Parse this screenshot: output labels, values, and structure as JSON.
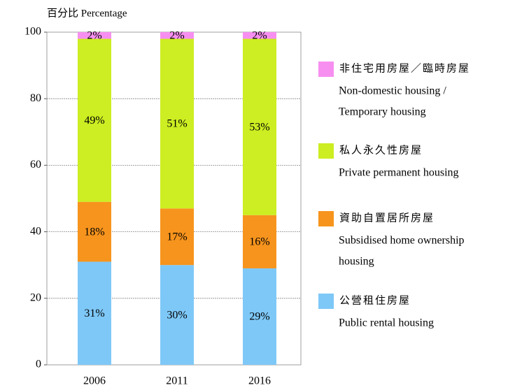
{
  "chart_data": {
    "type": "stacked_bar",
    "y_axis_label": "百分比 Percentage",
    "categories": [
      "2006",
      "2011",
      "2016"
    ],
    "series": [
      {
        "name": "公營租住房屋",
        "name_en": [
          "Public rental housing"
        ],
        "color": "#7ec8f7",
        "values": [
          31,
          30,
          29
        ],
        "value_labels": [
          "31%",
          "30%",
          "29%"
        ]
      },
      {
        "name": "資助自置居所房屋",
        "name_en": [
          "Subsidised home ownership",
          "housing"
        ],
        "color": "#f7941d",
        "values": [
          18,
          17,
          16
        ],
        "value_labels": [
          "18%",
          "17%",
          "16%"
        ]
      },
      {
        "name": "私人永久性房屋",
        "name_en": [
          "Private permanent housing"
        ],
        "color": "#ccee22",
        "values": [
          49,
          51,
          53
        ],
        "value_labels": [
          "49%",
          "51%",
          "53%"
        ]
      },
      {
        "name": "非住宅用房屋／臨時房屋",
        "name_en": [
          "Non-domestic housing /",
          "Temporary housing"
        ],
        "color": "#f78ff0",
        "values": [
          2,
          2,
          2
        ],
        "value_labels": [
          "2%",
          "2%",
          "2%"
        ]
      }
    ],
    "ylim": [
      0,
      100
    ],
    "yticks": [
      0,
      20,
      40,
      60,
      80,
      100
    ],
    "grid": true,
    "legend": "right"
  }
}
